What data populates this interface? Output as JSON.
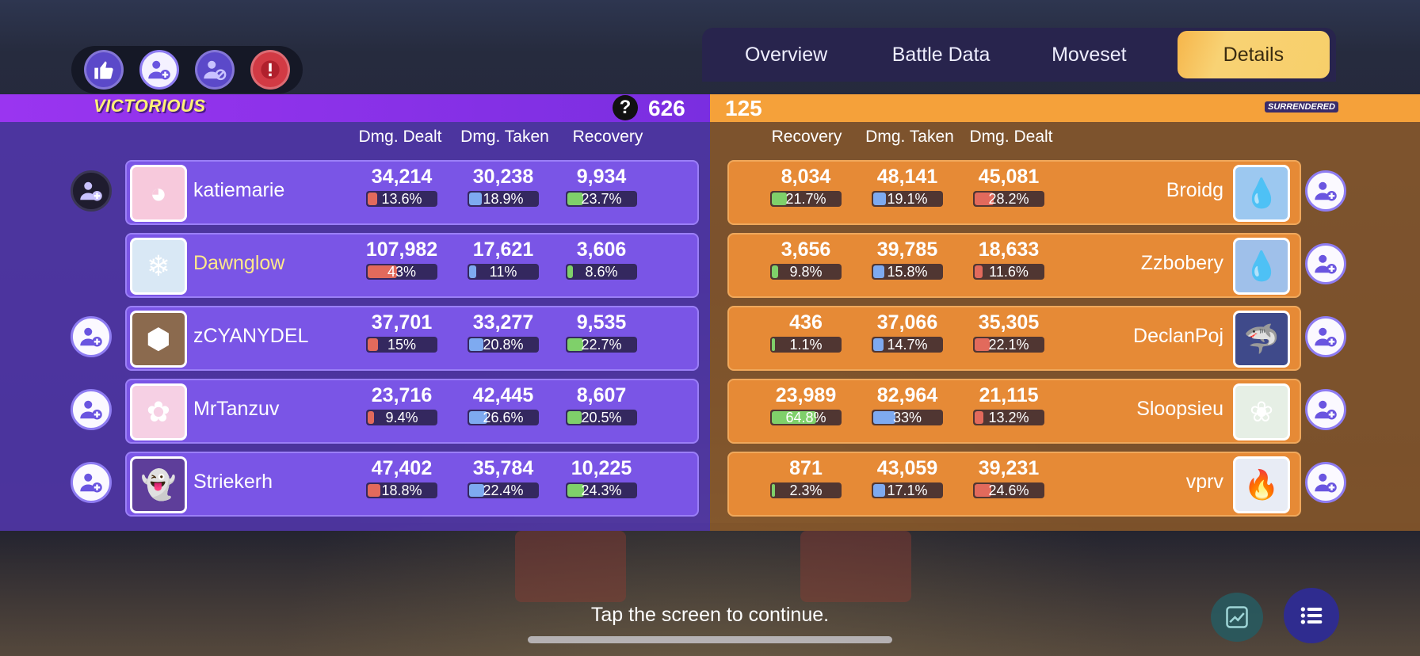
{
  "tabs": [
    {
      "label": "Overview",
      "active": false
    },
    {
      "label": "Battle Data",
      "active": false
    },
    {
      "label": "Moveset",
      "active": false
    },
    {
      "label": "Details",
      "active": true
    }
  ],
  "header": {
    "left_status": "VICTORIOUS",
    "left_score": "626",
    "right_score": "125",
    "right_status": "SURRENDERED",
    "help_glyph": "?"
  },
  "columns": {
    "left": [
      "Dmg. Dealt",
      "Dmg. Taken",
      "Recovery"
    ],
    "right": [
      "Recovery",
      "Dmg. Taken",
      "Dmg. Dealt"
    ]
  },
  "left_team": [
    {
      "name": "katiemarie",
      "pokemon_icon": "blissey-avatar",
      "dealt": "34,214",
      "dealt_pct": "13.6%",
      "dealt_frac": 0.136,
      "taken": "30,238",
      "taken_pct": "18.9%",
      "taken_frac": 0.189,
      "recovery": "9,934",
      "recovery_pct": "23.7%",
      "recovery_frac": 0.237,
      "friend_button": "dark"
    },
    {
      "name": "Dawnglow",
      "pokemon_icon": "alolan-ninetales-avatar",
      "dealt": "107,982",
      "dealt_pct": "43%",
      "dealt_frac": 0.43,
      "taken": "17,621",
      "taken_pct": "11%",
      "taken_frac": 0.11,
      "recovery": "3,606",
      "recovery_pct": "8.6%",
      "recovery_frac": 0.086,
      "friend_button": "none"
    },
    {
      "name": "zCYANYDEL",
      "pokemon_icon": "crustle-avatar",
      "dealt": "37,701",
      "dealt_pct": "15%",
      "dealt_frac": 0.15,
      "taken": "33,277",
      "taken_pct": "20.8%",
      "taken_frac": 0.208,
      "recovery": "9,535",
      "recovery_pct": "22.7%",
      "recovery_frac": 0.227,
      "friend_button": "light"
    },
    {
      "name": "MrTanzuv",
      "pokemon_icon": "wigglytuff-avatar",
      "dealt": "23,716",
      "dealt_pct": "9.4%",
      "dealt_frac": 0.094,
      "taken": "42,445",
      "taken_pct": "26.6%",
      "taken_frac": 0.266,
      "recovery": "8,607",
      "recovery_pct": "20.5%",
      "recovery_frac": 0.205,
      "friend_button": "light"
    },
    {
      "name": "Striekerh",
      "pokemon_icon": "gengar-avatar",
      "dealt": "47,402",
      "dealt_pct": "18.8%",
      "dealt_frac": 0.188,
      "taken": "35,784",
      "taken_pct": "22.4%",
      "taken_frac": 0.224,
      "recovery": "10,225",
      "recovery_pct": "24.3%",
      "recovery_frac": 0.243,
      "friend_button": "light"
    }
  ],
  "right_team": [
    {
      "name": "Broidg",
      "pokemon_icon": "inteleon-avatar",
      "recovery": "8,034",
      "recovery_pct": "21.7%",
      "recovery_frac": 0.217,
      "taken": "48,141",
      "taken_pct": "19.1%",
      "taken_frac": 0.191,
      "dealt": "45,081",
      "dealt_pct": "28.2%",
      "dealt_frac": 0.282
    },
    {
      "name": "Zzbobery",
      "pokemon_icon": "greninja-avatar",
      "recovery": "3,656",
      "recovery_pct": "9.8%",
      "recovery_frac": 0.098,
      "taken": "39,785",
      "taken_pct": "15.8%",
      "taken_frac": 0.158,
      "dealt": "18,633",
      "dealt_pct": "11.6%",
      "dealt_frac": 0.116
    },
    {
      "name": "DeclanPoj",
      "pokemon_icon": "garchomp-avatar",
      "recovery": "436",
      "recovery_pct": "1.1%",
      "recovery_frac": 0.011,
      "taken": "37,066",
      "taken_pct": "14.7%",
      "taken_frac": 0.147,
      "dealt": "35,305",
      "dealt_pct": "22.1%",
      "dealt_frac": 0.221
    },
    {
      "name": "Sloopsieu",
      "pokemon_icon": "eldegoss-avatar",
      "recovery": "23,989",
      "recovery_pct": "64.8%",
      "recovery_frac": 0.648,
      "taken": "82,964",
      "taken_pct": "33%",
      "taken_frac": 0.33,
      "dealt": "21,115",
      "dealt_pct": "13.2%",
      "dealt_frac": 0.132
    },
    {
      "name": "vprv",
      "pokemon_icon": "talonflame-avatar",
      "recovery": "871",
      "recovery_pct": "2.3%",
      "recovery_frac": 0.023,
      "taken": "43,059",
      "taken_pct": "17.1%",
      "taken_frac": 0.171,
      "dealt": "39,231",
      "dealt_pct": "24.6%",
      "dealt_frac": 0.246
    }
  ],
  "footer": {
    "continue_text": "Tap the screen to continue."
  },
  "colors": {
    "left_team_bar": "#8f33ee",
    "right_team_bar": "#f5a13a",
    "active_tab": "#f7cf6a",
    "dealt_fill": "#e26a5c",
    "taken_fill": "#7eaaf0",
    "recovery_fill": "#7fd06a"
  }
}
